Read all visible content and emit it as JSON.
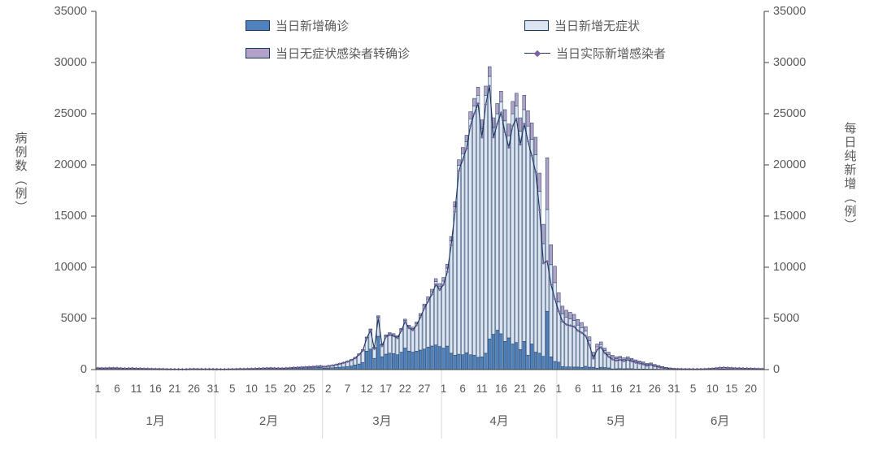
{
  "chart_data": {
    "type": "bar",
    "subtype": "stacked-bars-with-line",
    "title": "",
    "left_axis": {
      "title": "病例数（例）",
      "min": 0,
      "max": 35000,
      "ticks": [
        0,
        5000,
        10000,
        15000,
        20000,
        25000,
        30000,
        35000
      ]
    },
    "right_axis": {
      "title": "每日纯新增（例）",
      "min": 0,
      "max": 35000,
      "ticks": [
        0,
        5000,
        10000,
        15000,
        20000,
        25000,
        30000,
        35000
      ]
    },
    "legend": [
      {
        "label": "当日新增确诊",
        "type": "bar",
        "color_key": "confirmed"
      },
      {
        "label": "当日新增无症状",
        "type": "bar",
        "color_key": "asymptomatic"
      },
      {
        "label": "当日无症状感染者转确诊",
        "type": "bar",
        "color_key": "converted"
      },
      {
        "label": "当日实际新增感染者",
        "type": "line",
        "color_key": "line"
      }
    ],
    "colors": {
      "confirmed": "#4f81bd",
      "asymptomatic": "#dbe4f0",
      "converted": "#b3a2c7",
      "bar_border": "#17375e",
      "line": "#1f3864",
      "marker": "#7e62a1",
      "axis_line": "#404040",
      "axis_text": "#595959",
      "separator": "#d9d9d9"
    },
    "stack_order": [
      "confirmed",
      "asymptomatic",
      "converted"
    ],
    "line_formula": "confirmed + asymptomatic - converted",
    "x_tick_interval_days": 5,
    "months": [
      {
        "label": "1月",
        "days": 31,
        "tick_days": [
          1,
          6,
          11,
          16,
          21,
          26,
          31
        ]
      },
      {
        "label": "2月",
        "days": 28,
        "tick_days": [
          5,
          10,
          15,
          20,
          25
        ]
      },
      {
        "label": "3月",
        "days": 31,
        "tick_days": [
          2,
          7,
          12,
          17,
          22,
          27
        ]
      },
      {
        "label": "4月",
        "days": 30,
        "tick_days": [
          1,
          6,
          11,
          16,
          21,
          26
        ]
      },
      {
        "label": "5月",
        "days": 31,
        "tick_days": [
          1,
          6,
          11,
          16,
          21,
          26,
          31
        ]
      },
      {
        "label": "6月",
        "days": 23,
        "tick_days": [
          5,
          10,
          15,
          20
        ]
      }
    ],
    "series_columns": [
      "confirmed",
      "asymptomatic",
      "converted"
    ],
    "days": [
      [
        101,
        60,
        10
      ],
      [
        92,
        55,
        9
      ],
      [
        95,
        50,
        9
      ],
      [
        120,
        46,
        8
      ],
      [
        118,
        50,
        9
      ],
      [
        116,
        44,
        8
      ],
      [
        96,
        40,
        7
      ],
      [
        81,
        38,
        7
      ],
      [
        92,
        36,
        6
      ],
      [
        97,
        40,
        7
      ],
      [
        80,
        35,
        6
      ],
      [
        76,
        34,
        6
      ],
      [
        65,
        30,
        5
      ],
      [
        65,
        28,
        5
      ],
      [
        55,
        26,
        5
      ],
      [
        50,
        24,
        4
      ],
      [
        39,
        22,
        4
      ],
      [
        43,
        20,
        4
      ],
      [
        23,
        18,
        3
      ],
      [
        27,
        16,
        3
      ],
      [
        23,
        15,
        3
      ],
      [
        20,
        14,
        2
      ],
      [
        18,
        14,
        2
      ],
      [
        24,
        13,
        2
      ],
      [
        39,
        12,
        2
      ],
      [
        54,
        11,
        2
      ],
      [
        39,
        12,
        2
      ],
      [
        45,
        11,
        2
      ],
      [
        36,
        10,
        2
      ],
      [
        40,
        10,
        2
      ],
      [
        35,
        9,
        2
      ],
      [
        30,
        9,
        2
      ],
      [
        25,
        8,
        2
      ],
      [
        28,
        8,
        2
      ],
      [
        36,
        9,
        2
      ],
      [
        42,
        10,
        2
      ],
      [
        45,
        12,
        3
      ],
      [
        60,
        14,
        3
      ],
      [
        50,
        16,
        3
      ],
      [
        64,
        18,
        3
      ],
      [
        70,
        20,
        4
      ],
      [
        78,
        22,
        4
      ],
      [
        90,
        25,
        4
      ],
      [
        100,
        28,
        5
      ],
      [
        110,
        32,
        5
      ],
      [
        120,
        36,
        6
      ],
      [
        100,
        40,
        6
      ],
      [
        90,
        45,
        7
      ],
      [
        80,
        50,
        7
      ],
      [
        95,
        55,
        8
      ],
      [
        110,
        62,
        8
      ],
      [
        130,
        70,
        9
      ],
      [
        140,
        78,
        9
      ],
      [
        150,
        86,
        10
      ],
      [
        160,
        95,
        10
      ],
      [
        170,
        105,
        11
      ],
      [
        180,
        118,
        11
      ],
      [
        200,
        132,
        12
      ],
      [
        210,
        148,
        12
      ],
      [
        125,
        165,
        12
      ],
      [
        160,
        205,
        14
      ],
      [
        175,
        245,
        16
      ],
      [
        200,
        295,
        18
      ],
      [
        230,
        355,
        20
      ],
      [
        260,
        425,
        24
      ],
      [
        300,
        505,
        28
      ],
      [
        350,
        605,
        32
      ],
      [
        450,
        710,
        36
      ],
      [
        550,
        955,
        42
      ],
      [
        700,
        1210,
        48
      ],
      [
        1807,
        1315,
        60
      ],
      [
        2000,
        1900,
        70
      ],
      [
        1100,
        1005,
        80
      ],
      [
        3254,
        1906,
        95
      ],
      [
        1260,
        1145,
        90
      ],
      [
        1510,
        1795,
        100
      ],
      [
        1605,
        1895,
        110
      ],
      [
        1555,
        1845,
        112
      ],
      [
        1455,
        1745,
        115
      ],
      [
        1705,
        2195,
        120
      ],
      [
        2105,
        2695,
        130
      ],
      [
        1810,
        2390,
        140
      ],
      [
        1705,
        2295,
        150
      ],
      [
        1805,
        2695,
        162
      ],
      [
        1905,
        3395,
        180
      ],
      [
        2005,
        4195,
        205
      ],
      [
        2205,
        4695,
        225
      ],
      [
        2305,
        5295,
        252
      ],
      [
        2405,
        6195,
        285
      ],
      [
        2255,
        5845,
        305
      ],
      [
        2100,
        6550,
        350
      ],
      [
        2300,
        7620,
        380
      ],
      [
        1600,
        10980,
        420
      ],
      [
        1400,
        14520,
        480
      ],
      [
        1500,
        18450,
        550
      ],
      [
        1450,
        19650,
        600
      ],
      [
        1650,
        20600,
        650
      ],
      [
        1450,
        23050,
        700
      ],
      [
        1400,
        24350,
        750
      ],
      [
        1200,
        25600,
        800
      ],
      [
        1250,
        22300,
        850
      ],
      [
        1600,
        25200,
        900
      ],
      [
        3000,
        25650,
        950
      ],
      [
        3450,
        20200,
        950
      ],
      [
        3850,
        21150,
        1000
      ],
      [
        3500,
        22650,
        1050
      ],
      [
        2750,
        21550,
        1100
      ],
      [
        3100,
        19750,
        1150
      ],
      [
        2500,
        22500,
        1200
      ],
      [
        2650,
        23100,
        1250
      ],
      [
        1950,
        21350,
        1300
      ],
      [
        2750,
        22650,
        1400
      ],
      [
        1400,
        22400,
        1500
      ],
      [
        2500,
        20000,
        1600
      ],
      [
        1700,
        19300,
        1700
      ],
      [
        1600,
        15800,
        1800
      ],
      [
        1300,
        11000,
        1900
      ],
      [
        5700,
        9940,
        5060
      ],
      [
        1250,
        9000,
        1950
      ],
      [
        800,
        7700,
        1600
      ],
      [
        730,
        5870,
        900
      ],
      [
        280,
        5170,
        750
      ],
      [
        260,
        4840,
        700
      ],
      [
        260,
        4690,
        650
      ],
      [
        250,
        4550,
        600
      ],
      [
        250,
        4100,
        550
      ],
      [
        215,
        3885,
        500
      ],
      [
        320,
        3430,
        450
      ],
      [
        235,
        2565,
        400
      ],
      [
        230,
        1170,
        300
      ],
      [
        145,
        2075,
        280
      ],
      [
        230,
        2210,
        260
      ],
      [
        195,
        1665,
        240
      ],
      [
        165,
        1315,
        220
      ],
      [
        70,
        1130,
        200
      ],
      [
        80,
        990,
        180
      ],
      [
        95,
        1035,
        170
      ],
      [
        80,
        910,
        160
      ],
      [
        90,
        1010,
        150
      ],
      [
        85,
        875,
        140
      ],
      [
        50,
        770,
        130
      ],
      [
        55,
        675,
        120
      ],
      [
        60,
        580,
        110
      ],
      [
        50,
        450,
        100
      ],
      [
        45,
        515,
        90
      ],
      [
        45,
        375,
        80
      ],
      [
        40,
        290,
        70
      ],
      [
        30,
        210,
        60
      ],
      [
        10,
        160,
        50
      ],
      [
        10,
        110,
        40
      ],
      [
        6,
        84,
        30
      ],
      [
        10,
        70,
        20
      ],
      [
        12,
        60,
        18
      ],
      [
        10,
        54,
        16
      ],
      [
        12,
        49,
        14
      ],
      [
        10,
        48,
        12
      ],
      [
        12,
        43,
        10
      ],
      [
        14,
        46,
        10
      ],
      [
        16,
        54,
        10
      ],
      [
        20,
        70,
        10
      ],
      [
        30,
        80,
        10
      ],
      [
        40,
        110,
        10
      ],
      [
        55,
        135,
        10
      ],
      [
        60,
        150,
        10
      ],
      [
        50,
        140,
        10
      ],
      [
        45,
        125,
        10
      ],
      [
        40,
        110,
        10
      ],
      [
        38,
        102,
        10
      ],
      [
        36,
        94,
        10
      ],
      [
        34,
        86,
        10
      ],
      [
        30,
        80,
        10
      ],
      [
        28,
        72,
        10
      ],
      [
        25,
        65,
        10
      ],
      [
        22,
        58,
        10
      ]
    ]
  }
}
